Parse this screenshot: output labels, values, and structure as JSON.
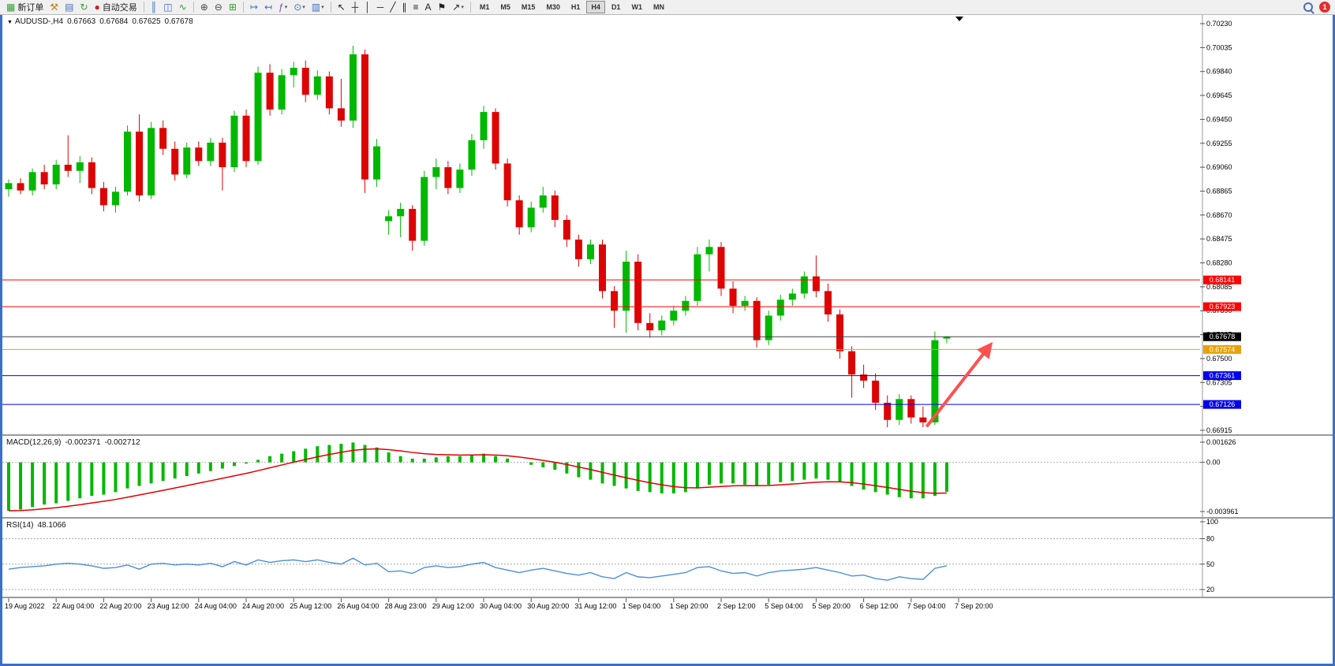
{
  "toolbar": {
    "notification_count": "1",
    "items": [
      {
        "name": "new-order-button",
        "glyph": "▦",
        "color": "#2e9e2e",
        "label": "新订单"
      },
      {
        "name": "expert-advisors-button",
        "glyph": "⚒",
        "color": "#b8860b"
      },
      {
        "name": "market-watch-button",
        "glyph": "▤",
        "color": "#4a6fb5"
      },
      {
        "name": "refresh-button",
        "glyph": "↻",
        "color": "#2e9e2e"
      },
      {
        "name": "autotrade-button",
        "glyph": "●",
        "color": "#d02020",
        "label": "自动交易"
      },
      {
        "sep": true
      },
      {
        "name": "chart-bars-button",
        "glyph": "║",
        "color": "#3a6fc0"
      },
      {
        "name": "chart-candles-button",
        "glyph": "◫",
        "color": "#3a6fc0"
      },
      {
        "name": "chart-line-button",
        "glyph": "∿",
        "color": "#2e9e2e"
      },
      {
        "sep": true
      },
      {
        "name": "zoom-in-button",
        "glyph": "⊕",
        "color": "#444444"
      },
      {
        "name": "zoom-out-button",
        "glyph": "⊖",
        "color": "#444444"
      },
      {
        "name": "grid-button",
        "glyph": "⊞",
        "color": "#2e9e2e"
      },
      {
        "sep": true
      },
      {
        "name": "auto-scroll-button",
        "glyph": "↦",
        "color": "#3a6fc0"
      },
      {
        "name": "chart-shift-button",
        "glyph": "↤",
        "color": "#3a6fc0"
      },
      {
        "name": "indicators-button",
        "glyph": "ƒ",
        "color": "#7a4fb5",
        "dropdown": true
      },
      {
        "name": "periods-button",
        "glyph": "⊙",
        "color": "#3a6fc0",
        "dropdown": true
      },
      {
        "name": "templates-button",
        "glyph": "▥",
        "color": "#3a6fc0",
        "dropdown": true
      },
      {
        "sep": true
      },
      {
        "name": "cursor-button",
        "glyph": "↖",
        "color": "#222222"
      },
      {
        "name": "crosshair-button",
        "glyph": "┼",
        "color": "#222222"
      },
      {
        "name": "vertical-line-button",
        "glyph": "│",
        "color": "#222222"
      },
      {
        "name": "horizontal-line-button",
        "glyph": "─",
        "color": "#222222"
      },
      {
        "name": "trendline-button",
        "glyph": "╱",
        "color": "#222222"
      },
      {
        "name": "channel-button",
        "glyph": "∥",
        "color": "#222222"
      },
      {
        "name": "fibonacci-button",
        "glyph": "≡",
        "color": "#222222"
      },
      {
        "name": "text-button",
        "glyph": "A",
        "color": "#222222"
      },
      {
        "name": "label-button",
        "glyph": "⚑",
        "color": "#222222"
      },
      {
        "name": "arrows-button",
        "glyph": "↗",
        "color": "#222222",
        "dropdown": true
      }
    ],
    "timeframes": {
      "items": [
        "M1",
        "M5",
        "M15",
        "M30",
        "H1",
        "H4",
        "D1",
        "W1",
        "MN"
      ],
      "active": "H4"
    }
  },
  "chart": {
    "marker_glyph": "▼",
    "title": "AUDUSD-,H4",
    "ohlc": {
      "open": "0.67663",
      "high": "0.67684",
      "low": "0.67625",
      "close": "0.67678"
    }
  },
  "indicators": {
    "macd": {
      "name": "MACD(12,26,9)",
      "value1": "-0.002371",
      "value2": "-0.002712"
    },
    "rsi": {
      "name": "RSI(14)",
      "value": "48.1066"
    }
  },
  "chart_data": {
    "type": "candlestick",
    "symbol": "AUDUSD-",
    "timeframe": "H4",
    "current_ohlc": {
      "open": 0.67663,
      "high": 0.67684,
      "low": 0.67625,
      "close": 0.67678
    },
    "colors": {
      "bull": "#00b800",
      "bear": "#dd0404",
      "macd_histogram": "#00b800",
      "macd_signal": "#e00000",
      "rsi_line": "#4a90d9",
      "arrow": "#ff5050"
    },
    "price_axis": {
      "labels": [
        "0.70230",
        "0.70035",
        "0.69840",
        "0.69645",
        "0.69450",
        "0.69255",
        "0.69060",
        "0.68865",
        "0.68670",
        "0.68475",
        "0.68280",
        "0.68085",
        "0.67890",
        "0.67695",
        "0.67500",
        "0.67305",
        "0.67110",
        "0.66915"
      ]
    },
    "x_labels": [
      {
        "bar": 0,
        "text": "19 Aug 2022"
      },
      {
        "bar": 4,
        "text": "22 Aug 04:00"
      },
      {
        "bar": 8,
        "text": "22 Aug 20:00"
      },
      {
        "bar": 12,
        "text": "23 Aug 12:00"
      },
      {
        "bar": 16,
        "text": "24 Aug 04:00"
      },
      {
        "bar": 20,
        "text": "24 Aug 20:00"
      },
      {
        "bar": 24,
        "text": "25 Aug 12:00"
      },
      {
        "bar": 28,
        "text": "26 Aug 04:00"
      },
      {
        "bar": 32,
        "text": "28 Aug 23:00"
      },
      {
        "bar": 36,
        "text": "29 Aug 12:00"
      },
      {
        "bar": 40,
        "text": "30 Aug 04:00"
      },
      {
        "bar": 44,
        "text": "30 Aug 20:00"
      },
      {
        "bar": 48,
        "text": "31 Aug 12:00"
      },
      {
        "bar": 52,
        "text": "1 Sep 04:00"
      },
      {
        "bar": 56,
        "text": "1 Sep 20:00"
      },
      {
        "bar": 60,
        "text": "2 Sep 12:00"
      },
      {
        "bar": 64,
        "text": "5 Sep 04:00"
      },
      {
        "bar": 68,
        "text": "5 Sep 20:00"
      },
      {
        "bar": 72,
        "text": "6 Sep 12:00"
      },
      {
        "bar": 76,
        "text": "7 Sep 04:00"
      },
      {
        "bar": 80,
        "text": "7 Sep 20:00"
      }
    ],
    "candles": [
      [
        0.6888,
        0.6896,
        0.6882,
        0.6893
      ],
      [
        0.6893,
        0.6897,
        0.6884,
        0.6887
      ],
      [
        0.6887,
        0.6905,
        0.6883,
        0.6902
      ],
      [
        0.6902,
        0.6908,
        0.6888,
        0.6892
      ],
      [
        0.6892,
        0.6912,
        0.6888,
        0.6908
      ],
      [
        0.6908,
        0.6932,
        0.6898,
        0.6903
      ],
      [
        0.6903,
        0.6915,
        0.6893,
        0.691
      ],
      [
        0.691,
        0.6914,
        0.6884,
        0.6889
      ],
      [
        0.6889,
        0.6894,
        0.687,
        0.6875
      ],
      [
        0.6875,
        0.689,
        0.6869,
        0.6886
      ],
      [
        0.6886,
        0.694,
        0.6883,
        0.6935
      ],
      [
        0.6935,
        0.6949,
        0.6878,
        0.6883
      ],
      [
        0.6883,
        0.6943,
        0.688,
        0.6938
      ],
      [
        0.6938,
        0.6944,
        0.6916,
        0.6921
      ],
      [
        0.6921,
        0.6927,
        0.6895,
        0.69
      ],
      [
        0.69,
        0.6926,
        0.6897,
        0.6922
      ],
      [
        0.6922,
        0.6927,
        0.6907,
        0.6911
      ],
      [
        0.6911,
        0.693,
        0.6907,
        0.6926
      ],
      [
        0.6926,
        0.693,
        0.6887,
        0.6906
      ],
      [
        0.6906,
        0.6952,
        0.6902,
        0.6948
      ],
      [
        0.6948,
        0.6953,
        0.6906,
        0.6911
      ],
      [
        0.6911,
        0.6988,
        0.6908,
        0.6983
      ],
      [
        0.6983,
        0.699,
        0.6948,
        0.6953
      ],
      [
        0.6953,
        0.6986,
        0.6949,
        0.6981
      ],
      [
        0.6981,
        0.6992,
        0.6971,
        0.6987
      ],
      [
        0.6987,
        0.6993,
        0.6959,
        0.6965
      ],
      [
        0.6965,
        0.6985,
        0.6961,
        0.698
      ],
      [
        0.698,
        0.6984,
        0.6949,
        0.6954
      ],
      [
        0.6954,
        0.6978,
        0.6939,
        0.6944
      ],
      [
        0.6944,
        0.7005,
        0.6938,
        0.6998
      ],
      [
        0.6998,
        0.7002,
        0.6885,
        0.6896
      ],
      [
        0.6896,
        0.6929,
        0.689,
        0.6923
      ],
      [
        0.6862,
        0.6871,
        0.6851,
        0.6866
      ],
      [
        0.6866,
        0.6877,
        0.6849,
        0.6872
      ],
      [
        0.6872,
        0.6875,
        0.6838,
        0.6846
      ],
      [
        0.6846,
        0.6903,
        0.6842,
        0.6898
      ],
      [
        0.6898,
        0.6913,
        0.6888,
        0.6906
      ],
      [
        0.6906,
        0.6911,
        0.6884,
        0.6889
      ],
      [
        0.6889,
        0.6909,
        0.6885,
        0.6904
      ],
      [
        0.6904,
        0.6933,
        0.6899,
        0.6928
      ],
      [
        0.6928,
        0.6956,
        0.6921,
        0.6951
      ],
      [
        0.6951,
        0.6954,
        0.6904,
        0.6909
      ],
      [
        0.6909,
        0.6913,
        0.6874,
        0.6879
      ],
      [
        0.6879,
        0.6883,
        0.6851,
        0.6857
      ],
      [
        0.6857,
        0.6878,
        0.6853,
        0.6873
      ],
      [
        0.6873,
        0.689,
        0.6869,
        0.6883
      ],
      [
        0.6883,
        0.6887,
        0.6857,
        0.6863
      ],
      [
        0.6863,
        0.6867,
        0.6841,
        0.6847
      ],
      [
        0.6847,
        0.6851,
        0.6825,
        0.6831
      ],
      [
        0.6831,
        0.6847,
        0.6827,
        0.6843
      ],
      [
        0.6843,
        0.6847,
        0.6799,
        0.6805
      ],
      [
        0.6805,
        0.6809,
        0.6775,
        0.6789
      ],
      [
        0.6789,
        0.6838,
        0.6771,
        0.6829
      ],
      [
        0.6829,
        0.6835,
        0.6773,
        0.6779
      ],
      [
        0.6779,
        0.6787,
        0.6767,
        0.6773
      ],
      [
        0.6773,
        0.6785,
        0.6769,
        0.6781
      ],
      [
        0.6781,
        0.6793,
        0.6777,
        0.6789
      ],
      [
        0.6789,
        0.6801,
        0.6785,
        0.6797
      ],
      [
        0.6797,
        0.6841,
        0.6793,
        0.6835
      ],
      [
        0.6835,
        0.6847,
        0.6821,
        0.6841
      ],
      [
        0.6841,
        0.6845,
        0.6801,
        0.6807
      ],
      [
        0.6807,
        0.6813,
        0.6787,
        0.6793
      ],
      [
        0.6793,
        0.6801,
        0.6789,
        0.6797
      ],
      [
        0.6797,
        0.68,
        0.6759,
        0.6765
      ],
      [
        0.6765,
        0.6789,
        0.6761,
        0.6785
      ],
      [
        0.6785,
        0.6802,
        0.6781,
        0.6798
      ],
      [
        0.6798,
        0.6807,
        0.6793,
        0.6803
      ],
      [
        0.6803,
        0.6821,
        0.6799,
        0.6817
      ],
      [
        0.6817,
        0.6834,
        0.68,
        0.6805
      ],
      [
        0.6805,
        0.6811,
        0.678,
        0.6786
      ],
      [
        0.6786,
        0.679,
        0.675,
        0.6756
      ],
      [
        0.6756,
        0.676,
        0.6718,
        0.6737
      ],
      [
        0.6737,
        0.6745,
        0.6726,
        0.6732
      ],
      [
        0.6732,
        0.6738,
        0.6708,
        0.6714
      ],
      [
        0.6714,
        0.672,
        0.6694,
        0.67
      ],
      [
        0.67,
        0.6721,
        0.6696,
        0.6717
      ],
      [
        0.6717,
        0.672,
        0.6697,
        0.6702
      ],
      [
        0.6702,
        0.6711,
        0.6694,
        0.6698
      ],
      [
        0.6698,
        0.6772,
        0.6696,
        0.6765
      ],
      [
        0.67663,
        0.67684,
        0.67625,
        0.67678
      ]
    ],
    "hlines": [
      {
        "price": 0.68141,
        "label": "0.68141",
        "color": "#ff0000"
      },
      {
        "price": 0.67923,
        "label": "0.67923",
        "color": "#ff0000"
      },
      {
        "price": 0.67678,
        "label": "0.67678",
        "color": "#404040",
        "tag_bg": "#000000",
        "current": true
      },
      {
        "price": 0.67574,
        "label": "0.67574",
        "color": "#e8a200"
      },
      {
        "price": 0.67361,
        "label": "0.67361",
        "color": "#0000ee"
      },
      {
        "price": 0.67126,
        "label": "0.67126",
        "color": "#0000ee"
      }
    ],
    "macd": {
      "axis_values": [
        0.001626,
        0,
        -0.003961
      ],
      "axis_labels": [
        "0.001626",
        "0.00",
        "-0.003961"
      ],
      "histogram": [
        -0.0039,
        -0.0038,
        -0.0036,
        -0.0034,
        -0.0033,
        -0.0031,
        -0.0029,
        -0.0027,
        -0.0026,
        -0.0024,
        -0.0021,
        -0.0019,
        -0.0017,
        -0.0015,
        -0.0013,
        -0.0011,
        -0.0009,
        -0.0007,
        -0.0005,
        -0.0003,
        -0.0001,
        0.0002,
        0.0005,
        0.0007,
        0.0009,
        0.0011,
        0.0013,
        0.0014,
        0.0015,
        0.0016,
        0.0014,
        0.0012,
        0.0008,
        0.0005,
        0.0003,
        0.0003,
        0.0004,
        0.0005,
        0.0005,
        0.0006,
        0.0007,
        0.0005,
        0.0003,
        0.0,
        -0.0002,
        -0.0004,
        -0.0006,
        -0.0009,
        -0.0012,
        -0.0014,
        -0.0017,
        -0.0019,
        -0.0021,
        -0.0023,
        -0.0024,
        -0.0025,
        -0.0025,
        -0.0024,
        -0.0021,
        -0.0018,
        -0.0017,
        -0.0017,
        -0.0018,
        -0.0019,
        -0.0018,
        -0.0016,
        -0.0015,
        -0.0014,
        -0.0013,
        -0.0014,
        -0.0016,
        -0.0019,
        -0.0022,
        -0.0024,
        -0.0026,
        -0.0028,
        -0.0029,
        -0.0029,
        -0.0027,
        -0.002371
      ]
    },
    "rsi": {
      "axis_values": [
        100,
        80,
        50,
        20
      ],
      "axis_labels": [
        "100",
        "80",
        "50",
        "20"
      ],
      "levels": [
        80,
        50,
        20
      ],
      "values": [
        44,
        46,
        47,
        48,
        50,
        51,
        50,
        48,
        45,
        46,
        49,
        44,
        50,
        51,
        49,
        50,
        49,
        51,
        47,
        53,
        49,
        55,
        52,
        54,
        55,
        53,
        55,
        52,
        50,
        57,
        49,
        51,
        41,
        42,
        39,
        46,
        48,
        46,
        47,
        50,
        52,
        46,
        43,
        40,
        43,
        45,
        42,
        39,
        37,
        40,
        35,
        33,
        40,
        35,
        34,
        36,
        38,
        40,
        46,
        47,
        42,
        39,
        40,
        36,
        40,
        42,
        43,
        44,
        46,
        43,
        40,
        36,
        37,
        33,
        31,
        35,
        33,
        32,
        45,
        48.1
      ]
    },
    "annotations": [
      {
        "type": "arrow",
        "from": {
          "bar": 77.3,
          "price": 0.66945
        },
        "to": {
          "bar": 82.7,
          "price": 0.67615
        }
      }
    ]
  }
}
